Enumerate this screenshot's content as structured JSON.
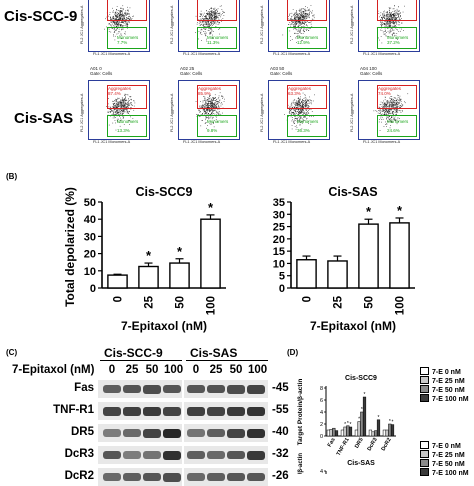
{
  "panelA": {
    "row_labels": [
      "Cis-SCC-9",
      "Cis-SAS"
    ],
    "gate_aggregates": "Aggregates",
    "gate_monomers": "Monomers",
    "y_axis": "FL2 JC1 Aggregates-A",
    "x_axis": "FL1 JC1 Monomers-A",
    "scc9_monomer_pct": [
      "7.7%",
      "11.3%",
      "12.9%",
      "37.2%"
    ],
    "sas_titles": [
      "A01 0\nGate: Cells",
      "A02 25\nGate: Cells",
      "A03 50\nGate: Cells",
      "A04 100\nGate: Cells"
    ],
    "sas_aggregate_pct": [
      "87.4%",
      "85.9%",
      "63.3%",
      "74.0%"
    ],
    "sas_monomer_pct": [
      "13.3%",
      "9.8%",
      "36.3%",
      "24.6%"
    ]
  },
  "panelB": {
    "letter": "(B)",
    "xlabel": "7-Epitaxol (nM)",
    "ylabel": "Total depolarized (%)",
    "significance": "*"
  },
  "panelC": {
    "letter": "(C)",
    "group_labels": [
      "Cis-SCC-9",
      "Cis-SAS"
    ],
    "treatment_label": "7-Epitaxol (nM)",
    "doses": [
      "0",
      "25",
      "50",
      "100",
      "0",
      "25",
      "50",
      "100"
    ],
    "proteins": [
      {
        "name": "Fas",
        "kda": "45"
      },
      {
        "name": "TNF-R1",
        "kda": "55"
      },
      {
        "name": "DR5",
        "kda": "40"
      },
      {
        "name": "DcR3",
        "kda": "32"
      },
      {
        "name": "DcR2",
        "kda": "26"
      }
    ]
  },
  "panelD": {
    "letter": "(D)",
    "chart_titles": [
      "Cis-SCC9",
      "Cis-SAS"
    ],
    "ylabel": "Target Protein/β-actin",
    "ylabel_partial": "otein/β-actin",
    "legend": [
      "7-E 0 nM",
      "7-E 25 nM",
      "7-E 50 nM",
      "7-E 100 nM"
    ],
    "legend_colors": [
      "#ffffff",
      "#c8c8c8",
      "#8a8a8a",
      "#3a3a3a"
    ],
    "categories": [
      "Fas",
      "TNF-R1",
      "DR5",
      "DcR3",
      "DcR2"
    ]
  },
  "chart_data": [
    {
      "type": "bar",
      "title": "Cis-SCC9",
      "categories": [
        "0",
        "25",
        "50",
        "100"
      ],
      "values": [
        7.5,
        12.5,
        14.5,
        40
      ],
      "errors": [
        0.5,
        2,
        2.5,
        2.5
      ],
      "significant": [
        false,
        true,
        true,
        true
      ],
      "xlabel": "7-Epitaxol (nM)",
      "ylabel": "Total depolarized (%)",
      "ylim": [
        0,
        50
      ],
      "yticks": [
        0,
        10,
        20,
        30,
        40,
        50
      ]
    },
    {
      "type": "bar",
      "title": "Cis-SAS",
      "categories": [
        "0",
        "25",
        "50",
        "100"
      ],
      "values": [
        11.5,
        11,
        26,
        26.5
      ],
      "errors": [
        1.5,
        2,
        2,
        2
      ],
      "significant": [
        false,
        false,
        true,
        true
      ],
      "xlabel": "7-Epitaxol (nM)",
      "ylabel": "Total depolarized (%)",
      "ylim": [
        0,
        35
      ],
      "yticks": [
        0,
        5,
        10,
        15,
        20,
        25,
        30,
        35
      ]
    },
    {
      "type": "bar",
      "title": "Cis-SCC9",
      "categories": [
        "Fas",
        "TNF-R1",
        "DR5",
        "DcR3",
        "DcR2"
      ],
      "series": [
        {
          "name": "7-E 0 nM",
          "values": [
            1,
            1,
            1,
            1,
            1
          ]
        },
        {
          "name": "7-E 25 nM",
          "values": [
            1.1,
            1.5,
            2.4,
            0.7,
            1.0
          ]
        },
        {
          "name": "7-E 50 nM",
          "values": [
            1.3,
            1.7,
            4.0,
            0.9,
            2.0
          ]
        },
        {
          "name": "7-E 100 nM",
          "values": [
            0.9,
            1.5,
            6.5,
            2.7,
            1.9
          ]
        }
      ],
      "ylabel": "Target Protein/β-actin",
      "ylim": [
        0,
        8
      ],
      "yticks": [
        0,
        2,
        4,
        6,
        8
      ]
    },
    {
      "type": "bar",
      "title": "Cis-SAS",
      "categories": [],
      "series": [],
      "ylabel": "Target Protein/β-actin",
      "ylim": [
        0,
        5
      ],
      "yticks": [
        3,
        4
      ]
    }
  ]
}
